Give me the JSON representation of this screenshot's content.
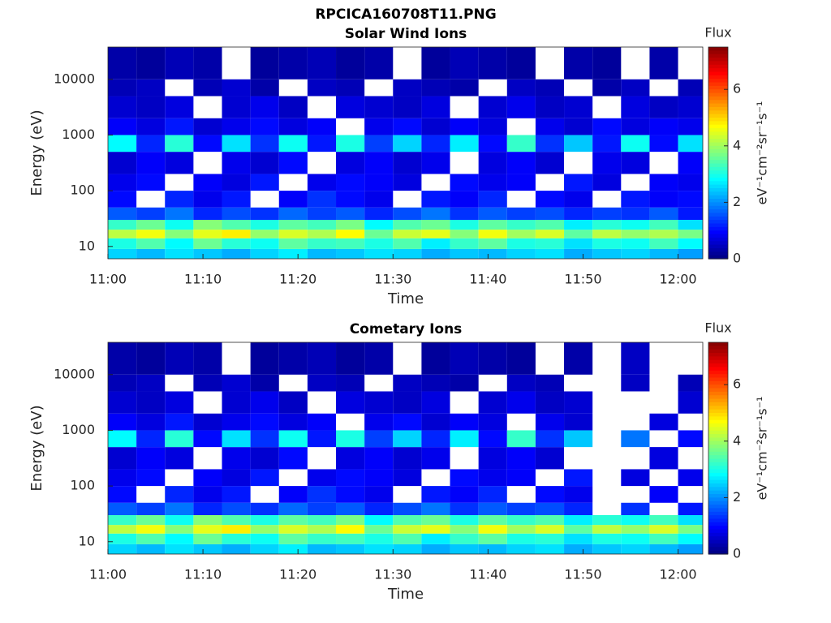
{
  "chart_data": [
    {
      "type": "heatmap",
      "suptitle": "RPCICA160708T11.PNG",
      "title": "Solar Wind Ions",
      "xlabel": "Time",
      "ylabel": "Energy (eV)",
      "colorbar_title": "Flux",
      "colorbar_label": "eV⁻¹cm⁻²sr⁻¹s⁻¹",
      "colormap": "jet",
      "yscale": "log",
      "xlim": [
        660,
        722.6
      ],
      "xticks": [
        {
          "value": 660,
          "label": "11:00"
        },
        {
          "value": 670,
          "label": "11:10"
        },
        {
          "value": 680,
          "label": "11:20"
        },
        {
          "value": 690,
          "label": "11:30"
        },
        {
          "value": 700,
          "label": "11:40"
        },
        {
          "value": 710,
          "label": "11:50"
        },
        {
          "value": 720,
          "label": "12:00"
        }
      ],
      "ylim": [
        6,
        38000
      ],
      "yticks": [
        10,
        100,
        1000,
        10000
      ],
      "clim": [
        0,
        7.5
      ],
      "cticks": [
        0,
        2,
        4,
        6
      ],
      "xbins": [
        660,
        663,
        666,
        669,
        672,
        675,
        678,
        681,
        684,
        687,
        690,
        693,
        696,
        699,
        702,
        705,
        708,
        711,
        714,
        717,
        720,
        723
      ],
      "ybins": [
        6,
        9,
        14,
        20,
        30,
        50,
        100,
        200,
        500,
        1000,
        2000,
        5000,
        10000,
        38000
      ],
      "z": [
        [
          2.5,
          2.3,
          2.6,
          2.4,
          2.2,
          2.5,
          2.7,
          2.3,
          2.4,
          2.6,
          2.5,
          2.2,
          2.4,
          2.3,
          2.5,
          2.6,
          2.2,
          2.4,
          2.5,
          2.3,
          2.1
        ],
        [
          3.0,
          3.4,
          2.8,
          3.6,
          3.1,
          2.9,
          3.5,
          3.2,
          3.3,
          3.0,
          3.4,
          2.7,
          3.2,
          3.5,
          3.0,
          3.1,
          2.6,
          3.0,
          2.9,
          3.3,
          2.8
        ],
        [
          4.2,
          4.6,
          3.8,
          4.5,
          4.8,
          3.9,
          4.4,
          4.1,
          4.7,
          3.6,
          4.3,
          4.5,
          3.8,
          4.6,
          4.0,
          4.4,
          3.5,
          4.2,
          3.9,
          4.1,
          3.7
        ],
        [
          3.2,
          3.6,
          2.9,
          3.8,
          3.4,
          3.0,
          3.5,
          3.3,
          3.7,
          2.8,
          3.4,
          3.6,
          3.0,
          3.5,
          3.2,
          3.4,
          2.7,
          3.1,
          2.9,
          3.3,
          2.6
        ],
        [
          1.6,
          1.4,
          1.8,
          1.2,
          1.5,
          1.3,
          1.7,
          1.4,
          1.6,
          1.2,
          1.5,
          1.8,
          1.3,
          1.6,
          1.4,
          1.5,
          1.2,
          1.4,
          1.3,
          1.6,
          1.1
        ],
        [
          1.0,
          null,
          1.2,
          0.8,
          1.1,
          null,
          0.9,
          1.3,
          1.0,
          0.8,
          null,
          1.1,
          0.9,
          1.2,
          null,
          1.0,
          0.8,
          null,
          1.1,
          0.9,
          1.0
        ],
        [
          0.8,
          1.0,
          null,
          0.9,
          0.7,
          1.1,
          null,
          0.8,
          1.0,
          0.9,
          0.7,
          null,
          1.0,
          0.8,
          0.9,
          null,
          1.1,
          0.7,
          null,
          0.9,
          0.8
        ],
        [
          0.6,
          0.9,
          0.7,
          null,
          0.8,
          0.6,
          1.0,
          null,
          0.7,
          0.9,
          0.6,
          0.8,
          null,
          0.7,
          0.9,
          0.6,
          null,
          0.8,
          0.7,
          null,
          0.9
        ],
        [
          2.8,
          1.2,
          3.1,
          1.0,
          2.6,
          1.3,
          2.9,
          1.1,
          3.0,
          1.4,
          2.5,
          1.2,
          2.7,
          1.0,
          3.2,
          1.3,
          2.4,
          1.1,
          2.9,
          1.0,
          2.6
        ],
        [
          0.9,
          0.7,
          1.1,
          0.6,
          0.8,
          1.0,
          0.7,
          0.9,
          null,
          0.8,
          1.0,
          0.6,
          0.9,
          0.7,
          null,
          0.8,
          0.6,
          1.0,
          0.7,
          0.9,
          0.8
        ],
        [
          0.6,
          0.5,
          0.7,
          null,
          0.6,
          0.8,
          0.5,
          null,
          0.7,
          0.6,
          0.5,
          0.7,
          null,
          0.6,
          0.8,
          0.5,
          0.6,
          null,
          0.7,
          0.5,
          0.6
        ],
        [
          0.4,
          0.5,
          null,
          0.4,
          0.6,
          0.3,
          null,
          0.5,
          0.4,
          null,
          0.5,
          0.4,
          0.3,
          null,
          0.5,
          0.4,
          null,
          0.3,
          0.5,
          null,
          0.4
        ],
        [
          0.3,
          0.2,
          0.4,
          0.3,
          null,
          0.2,
          0.3,
          0.4,
          0.2,
          0.3,
          null,
          0.2,
          0.4,
          0.3,
          0.2,
          null,
          0.3,
          0.2,
          null,
          0.3,
          null
        ]
      ]
    },
    {
      "type": "heatmap",
      "title": "Cometary Ions",
      "xlabel": "Time",
      "ylabel": "Energy (eV)",
      "colorbar_title": "Flux",
      "colorbar_label": "eV⁻¹cm⁻²sr⁻¹s⁻¹",
      "colormap": "jet",
      "yscale": "log",
      "xlim": [
        660,
        722.6
      ],
      "xticks": [
        {
          "value": 660,
          "label": "11:00"
        },
        {
          "value": 670,
          "label": "11:10"
        },
        {
          "value": 680,
          "label": "11:20"
        },
        {
          "value": 690,
          "label": "11:30"
        },
        {
          "value": 700,
          "label": "11:40"
        },
        {
          "value": 710,
          "label": "11:50"
        },
        {
          "value": 720,
          "label": "12:00"
        }
      ],
      "ylim": [
        6,
        38000
      ],
      "yticks": [
        10,
        100,
        1000,
        10000
      ],
      "clim": [
        0,
        7.5
      ],
      "cticks": [
        0,
        2,
        4,
        6
      ],
      "xbins": [
        660,
        663,
        666,
        669,
        672,
        675,
        678,
        681,
        684,
        687,
        690,
        693,
        696,
        699,
        702,
        705,
        708,
        711,
        714,
        717,
        720,
        723
      ],
      "ybins": [
        6,
        9,
        14,
        20,
        30,
        50,
        100,
        200,
        500,
        1000,
        2000,
        5000,
        10000,
        38000
      ],
      "z": [
        [
          2.5,
          2.3,
          2.6,
          2.4,
          2.2,
          2.5,
          2.7,
          2.3,
          2.4,
          2.6,
          2.5,
          2.2,
          2.4,
          2.3,
          2.5,
          2.6,
          2.2,
          2.4,
          2.5,
          2.3,
          2.1
        ],
        [
          3.0,
          3.4,
          2.8,
          3.6,
          3.1,
          2.9,
          3.5,
          3.2,
          3.3,
          3.0,
          3.4,
          2.7,
          3.2,
          3.5,
          3.0,
          3.1,
          2.6,
          3.0,
          2.9,
          3.3,
          2.8
        ],
        [
          4.2,
          4.6,
          3.8,
          4.5,
          4.8,
          3.9,
          4.4,
          4.1,
          4.7,
          3.6,
          4.3,
          4.5,
          3.8,
          4.6,
          4.0,
          4.4,
          3.5,
          4.2,
          3.9,
          4.4,
          3.7
        ],
        [
          3.2,
          3.6,
          2.9,
          3.8,
          3.4,
          3.0,
          3.5,
          3.3,
          3.7,
          2.8,
          3.4,
          3.6,
          3.0,
          3.5,
          3.2,
          3.4,
          2.7,
          3.1,
          2.9,
          3.3,
          2.6
        ],
        [
          1.6,
          1.4,
          1.8,
          1.2,
          1.5,
          1.3,
          1.7,
          1.4,
          1.6,
          1.2,
          1.5,
          1.8,
          1.3,
          1.6,
          1.4,
          1.5,
          1.2,
          null,
          1.3,
          null,
          1.1
        ],
        [
          1.0,
          null,
          1.2,
          0.8,
          1.1,
          null,
          0.9,
          1.3,
          1.0,
          0.8,
          null,
          1.1,
          0.9,
          1.2,
          null,
          1.0,
          0.8,
          null,
          null,
          0.9,
          null
        ],
        [
          0.8,
          1.0,
          null,
          0.9,
          0.7,
          1.1,
          null,
          0.8,
          1.0,
          0.9,
          0.7,
          null,
          1.0,
          0.8,
          0.9,
          null,
          1.1,
          null,
          0.7,
          null,
          0.8
        ],
        [
          0.6,
          0.9,
          0.7,
          null,
          0.8,
          0.6,
          1.0,
          null,
          0.7,
          0.9,
          0.6,
          0.8,
          null,
          0.7,
          0.9,
          0.6,
          null,
          null,
          null,
          0.7,
          null
        ],
        [
          2.8,
          1.2,
          3.1,
          1.0,
          2.6,
          1.3,
          2.9,
          1.1,
          3.0,
          1.4,
          2.5,
          1.2,
          2.7,
          1.0,
          3.2,
          1.3,
          2.4,
          null,
          1.8,
          null,
          1.0
        ],
        [
          0.9,
          0.7,
          1.1,
          0.6,
          0.8,
          1.0,
          0.7,
          0.9,
          null,
          0.8,
          1.0,
          0.6,
          0.9,
          0.7,
          null,
          0.8,
          0.6,
          null,
          null,
          0.7,
          null
        ],
        [
          0.6,
          0.5,
          0.7,
          null,
          0.6,
          0.8,
          0.5,
          null,
          0.7,
          0.6,
          0.5,
          0.7,
          null,
          0.6,
          0.8,
          0.5,
          0.6,
          null,
          null,
          null,
          0.6
        ],
        [
          0.4,
          0.5,
          null,
          0.4,
          0.6,
          0.3,
          null,
          0.5,
          0.4,
          null,
          0.5,
          0.4,
          0.3,
          null,
          0.5,
          0.4,
          null,
          null,
          0.5,
          null,
          0.4
        ],
        [
          0.3,
          0.2,
          0.4,
          0.3,
          null,
          0.2,
          0.3,
          0.4,
          0.2,
          0.3,
          null,
          0.2,
          0.4,
          0.3,
          0.2,
          null,
          0.3,
          null,
          0.5,
          null,
          null
        ]
      ]
    }
  ]
}
